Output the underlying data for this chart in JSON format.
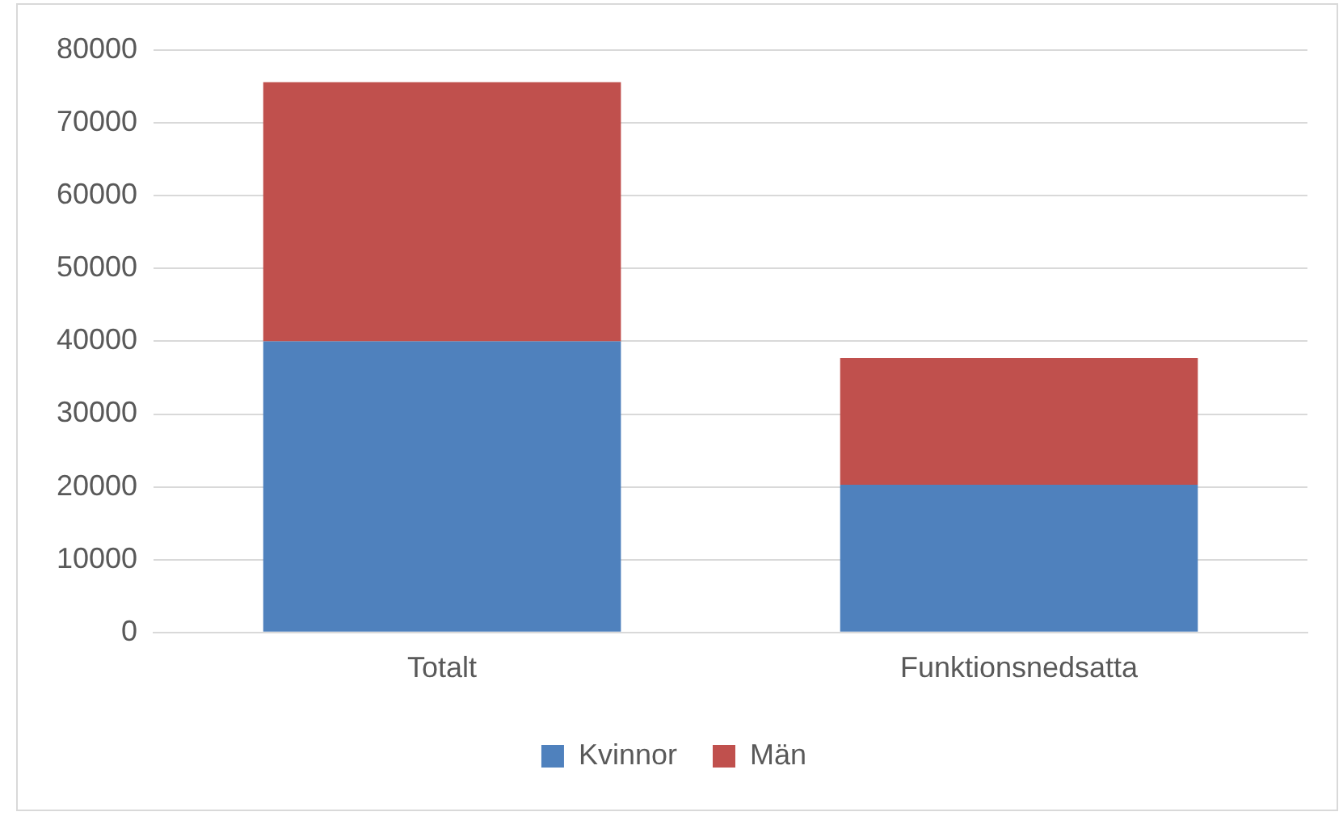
{
  "chart_data": {
    "type": "bar",
    "stacked": true,
    "categories": [
      "Totalt",
      "Funktionsnedsatta"
    ],
    "series": [
      {
        "name": "Kvinnor",
        "color": "#4f81bd",
        "values": [
          40000,
          20300
        ]
      },
      {
        "name": "Män",
        "color": "#c0504d",
        "values": [
          35600,
          17400
        ]
      }
    ],
    "ylim": [
      0,
      80000
    ],
    "yticks": [
      0,
      10000,
      20000,
      30000,
      40000,
      50000,
      60000,
      70000,
      80000
    ],
    "grid": "y",
    "legend": "bottom"
  }
}
